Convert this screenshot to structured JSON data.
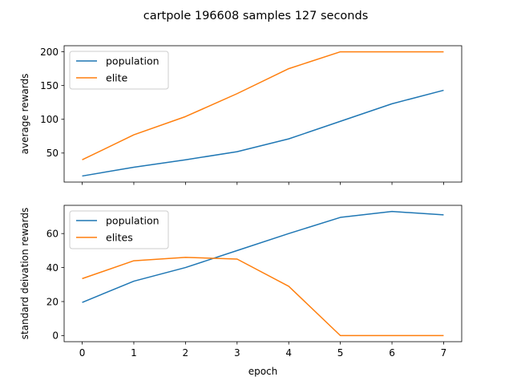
{
  "figure": {
    "title": "cartpole 196608 samples 127 seconds"
  },
  "chart_data": [
    {
      "type": "line",
      "ylabel": "average rewards",
      "xlabel": "",
      "x": [
        0,
        1,
        2,
        3,
        4,
        5,
        6,
        7
      ],
      "xlim": [
        -0.35,
        7.35
      ],
      "ylim": [
        7,
        209
      ],
      "yticks": [
        50,
        100,
        150,
        200
      ],
      "xticks": [
        0,
        1,
        2,
        3,
        4,
        5,
        6,
        7
      ],
      "show_xtick_labels": false,
      "legend": "upper-left",
      "series": [
        {
          "name": "population",
          "color": "#1f77b4",
          "values": [
            16,
            29,
            40,
            52,
            71,
            97,
            123,
            143
          ]
        },
        {
          "name": "elite",
          "color": "#ff7f0e",
          "values": [
            40,
            77,
            104,
            138,
            175,
            200,
            200,
            200
          ]
        }
      ]
    },
    {
      "type": "line",
      "ylabel": "standard deivation rewards",
      "xlabel": "epoch",
      "x": [
        0,
        1,
        2,
        3,
        4,
        5,
        6,
        7
      ],
      "xlim": [
        -0.35,
        7.35
      ],
      "ylim": [
        -3.6,
        76.6
      ],
      "yticks": [
        0,
        20,
        40,
        60
      ],
      "xticks": [
        0,
        1,
        2,
        3,
        4,
        5,
        6,
        7
      ],
      "show_xtick_labels": true,
      "legend": "upper-left",
      "series": [
        {
          "name": "population",
          "color": "#1f77b4",
          "values": [
            19.5,
            32,
            40,
            50,
            60,
            69.5,
            73,
            71
          ]
        },
        {
          "name": "elites",
          "color": "#ff7f0e",
          "values": [
            33.5,
            44,
            46,
            45,
            29,
            0,
            0,
            0
          ]
        }
      ]
    }
  ]
}
